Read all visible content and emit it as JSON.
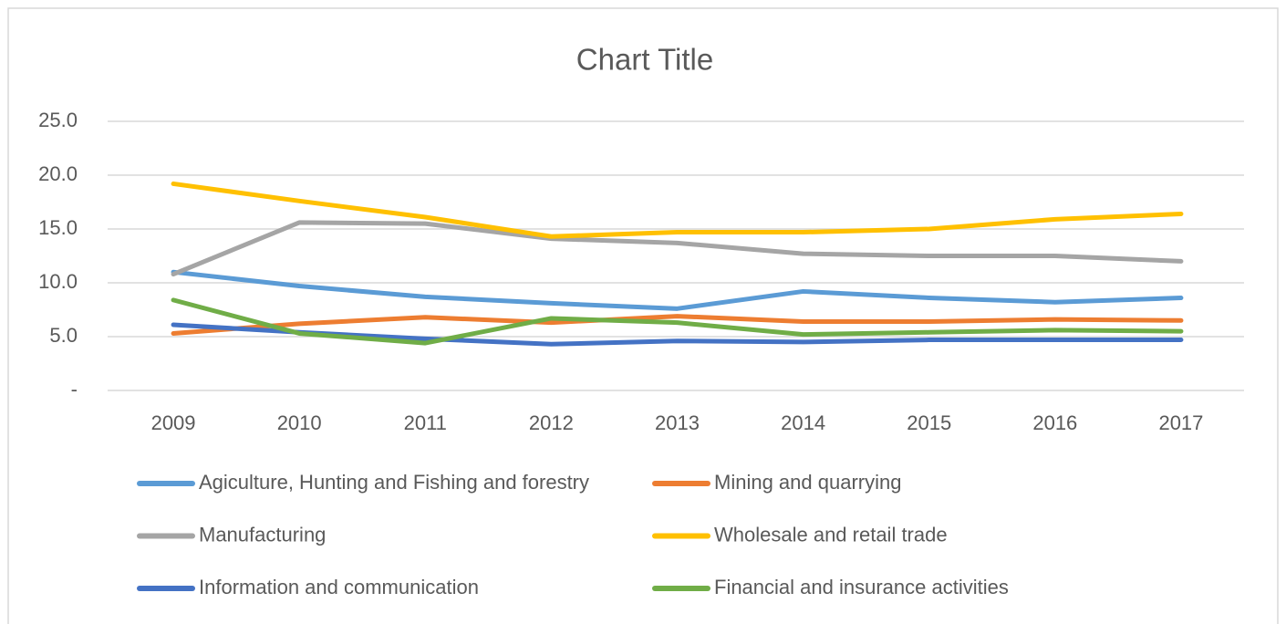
{
  "chart_data": {
    "type": "line",
    "title": "Chart Title",
    "categories": [
      "2009",
      "2010",
      "2011",
      "2012",
      "2013",
      "2014",
      "2015",
      "2016",
      "2017"
    ],
    "ylim": [
      0,
      25
    ],
    "yticks": [
      {
        "value": 0,
        "label": "-"
      },
      {
        "value": 5,
        "label": "5.0"
      },
      {
        "value": 10,
        "label": "10.0"
      },
      {
        "value": 15,
        "label": "15.0"
      },
      {
        "value": 20,
        "label": "20.0"
      },
      {
        "value": 25,
        "label": "25.0"
      }
    ],
    "grid": true,
    "legend": "bottom",
    "series": [
      {
        "name": "Agiculture, Hunting and Fishing and forestry",
        "color": "#5b9bd5",
        "values": [
          11.0,
          9.7,
          8.7,
          8.1,
          7.6,
          9.2,
          8.6,
          8.2,
          8.6
        ]
      },
      {
        "name": "Mining and quarrying",
        "color": "#ed7d31",
        "values": [
          5.3,
          6.2,
          6.8,
          6.3,
          6.9,
          6.4,
          6.4,
          6.6,
          6.5
        ]
      },
      {
        "name": "Manufacturing",
        "color": "#a5a5a5",
        "values": [
          10.8,
          15.6,
          15.5,
          14.1,
          13.7,
          12.7,
          12.5,
          12.5,
          12.0
        ]
      },
      {
        "name": "Wholesale and retail trade",
        "color": "#ffc000",
        "values": [
          19.2,
          17.6,
          16.1,
          14.3,
          14.7,
          14.7,
          15.0,
          15.9,
          16.4
        ]
      },
      {
        "name": "Information and communication",
        "color": "#4472c4",
        "values": [
          6.1,
          5.4,
          4.8,
          4.3,
          4.6,
          4.5,
          4.7,
          4.7,
          4.7
        ]
      },
      {
        "name": "Financial and insurance activities",
        "color": "#70ad47",
        "values": [
          8.4,
          5.3,
          4.4,
          6.7,
          6.3,
          5.2,
          5.4,
          5.6,
          5.5
        ]
      }
    ]
  }
}
